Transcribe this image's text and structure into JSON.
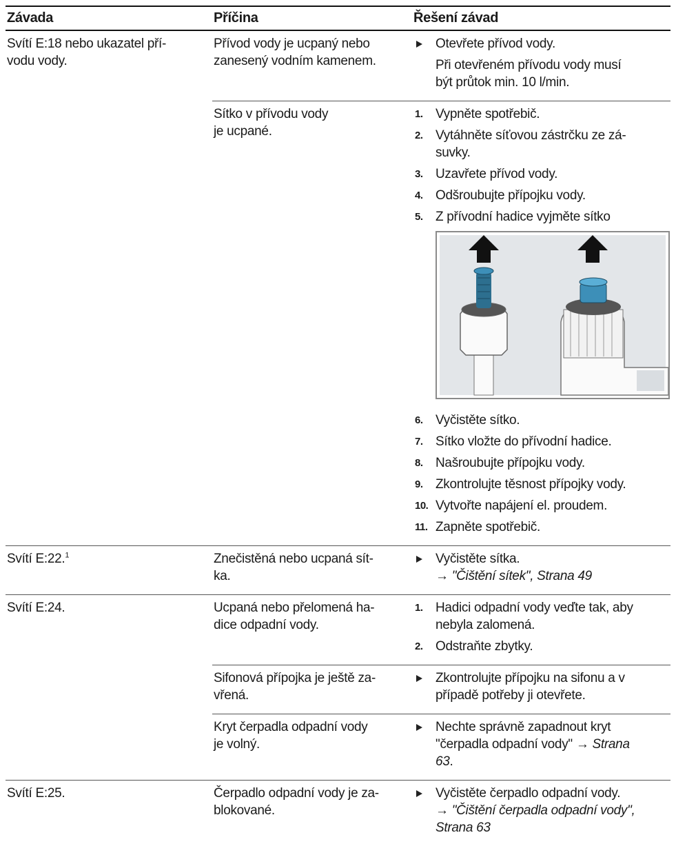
{
  "table": {
    "headers": [
      "Závada",
      "Příčina",
      "Řešení závad"
    ],
    "rows": [
      {
        "fault": "Svítí E:18 nebo ukazatel pří-\nvodu vody.",
        "causes": [
          {
            "cause": "Přívod vody je ucpaný nebo\nzanesený vodním kamenem.",
            "action": "Otevřete přívod vody.",
            "note": "Při otevřeném přívodu vody musí\nbýt průtok min. 10 l/min."
          },
          {
            "cause": "Sítko v přívodu vody\nje ucpané.",
            "steps": [
              {
                "num": "1.",
                "text": "Vypněte spotřebič."
              },
              {
                "num": "2.",
                "text": "Vytáhněte síťovou zástrčku ze zá-\nsuvky."
              },
              {
                "num": "3.",
                "text": "Uzavřete přívod vody."
              },
              {
                "num": "4.",
                "text": "Odšroubujte přípojku vody."
              },
              {
                "num": "5.",
                "text": "Z přívodní hadice vyjměte sítko"
              },
              {
                "num": "6.",
                "text": "Vyčistěte sítko."
              },
              {
                "num": "7.",
                "text": "Sítko vložte do přívodní hadice."
              },
              {
                "num": "8.",
                "text": "Našroubujte přípojku vody."
              },
              {
                "num": "9.",
                "text": "Zkontrolujte těsnost přípojky vody."
              },
              {
                "num": "10.",
                "text": "Vytvořte napájení el. proudem."
              },
              {
                "num": "11.",
                "text": "Zapněte spotřebič."
              }
            ]
          }
        ]
      },
      {
        "fault": "Svítí E:22.",
        "sup": "1",
        "causes": [
          {
            "cause": "Znečistěná nebo ucpaná sít-\nka.",
            "action": "Vyčistěte sítka.",
            "arrow": "→",
            "link": "\"Čištění sítek\", Strana 49"
          }
        ]
      },
      {
        "fault": "Svítí E:24.",
        "causes": [
          {
            "cause": "Ucpaná nebo přelomená ha-\ndice odpadní vody.",
            "steps": [
              {
                "num": "1.",
                "text": "Hadici odpadní vody veďte tak, aby\nnebyla zalomená."
              },
              {
                "num": "2.",
                "text": "Odstraňte zbytky."
              }
            ]
          },
          {
            "cause": "Sifonová přípojka je ještě za-\nvřená.",
            "action": "Zkontrolujte přípojku na sifonu a v\npřípadě potřeby ji otevřete."
          },
          {
            "cause": "Kryt čerpadla odpadní vody\nje volný.",
            "action": "Nechte správně zapadnout kryt\n\"čerpadla odpadní vody\"",
            "arrow": "→",
            "link": "Strana\n63",
            "tail": "."
          }
        ]
      },
      {
        "fault": "Svítí E:25.",
        "causes": [
          {
            "cause": "Čerpadlo odpadní vody je za-\nblokované.",
            "action": "Vyčistěte čerpadlo odpadní vody.",
            "arrow": "→",
            "link": "\"Čištění čerpadla odpadní vody\",\nStrana 63"
          }
        ]
      }
    ]
  }
}
